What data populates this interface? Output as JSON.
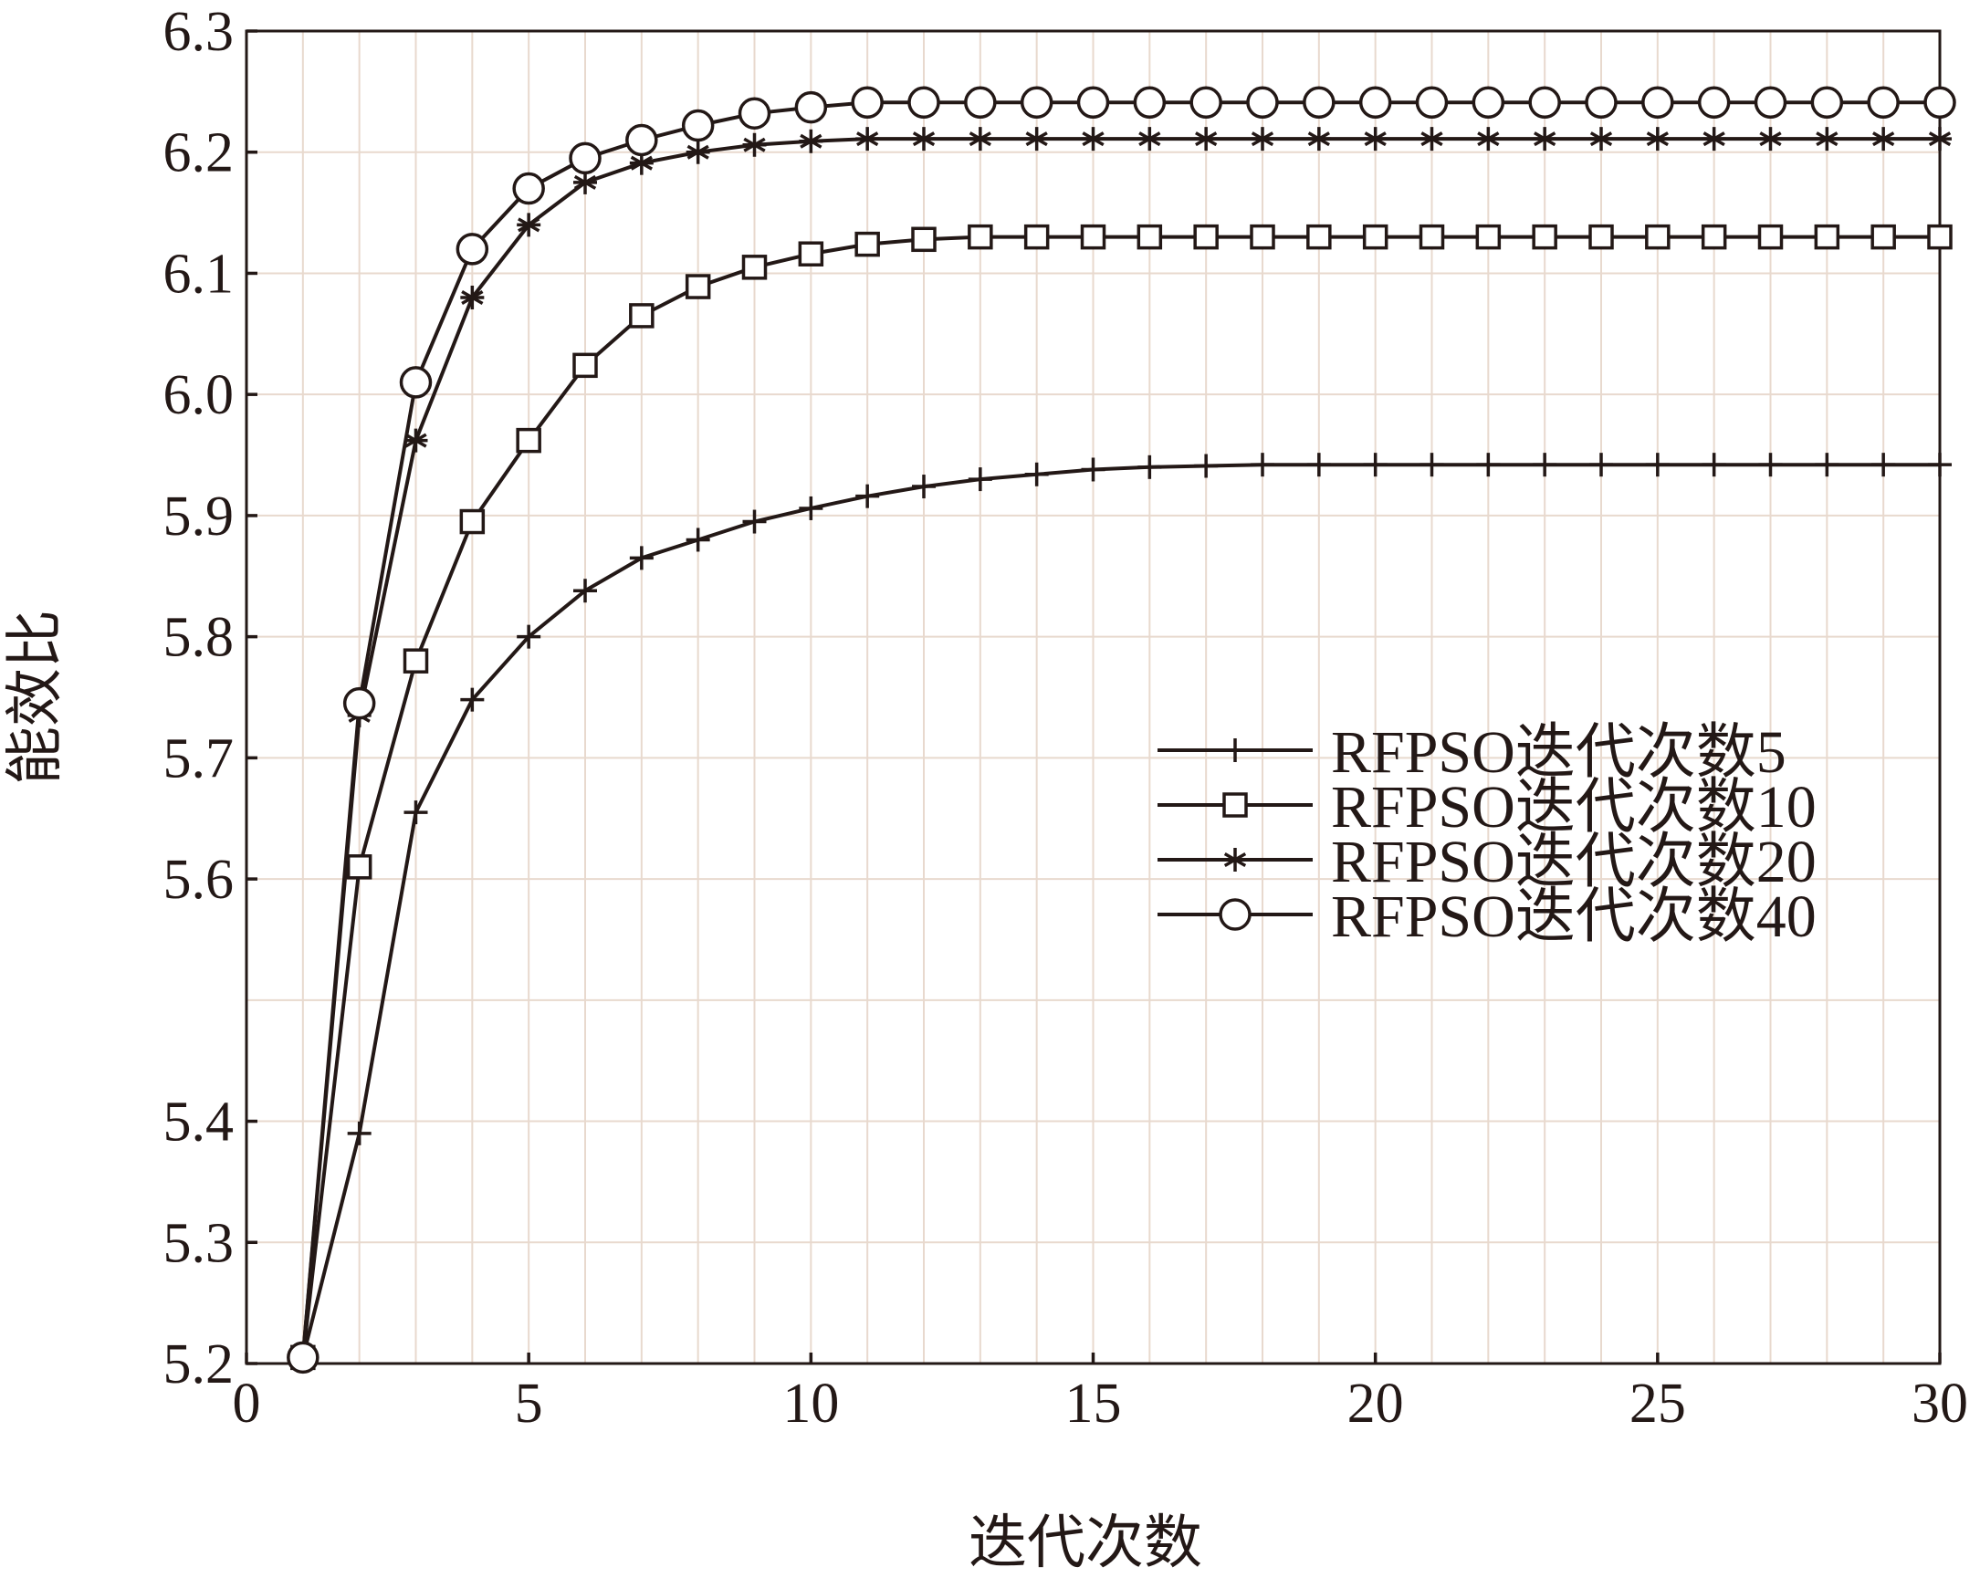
{
  "chart_data": {
    "type": "line",
    "xlabel": "迭代次数",
    "ylabel": "能效比",
    "xlim": [
      0,
      30
    ],
    "ylim": [
      5.2,
      6.3
    ],
    "x_ticks": [
      "0",
      "5",
      "10",
      "15",
      "20",
      "25",
      "30"
    ],
    "y_ticks": [
      "5.2",
      "5.3",
      "5.4",
      "5.6",
      "5.7",
      "5.8",
      "5.9",
      "6.0",
      "6.1",
      "6.2",
      "6.3"
    ],
    "grid": true,
    "legend_position": "center-right",
    "colors": {
      "line": "#231816",
      "grid": "#e8d9ce"
    },
    "series": [
      {
        "name": "RFPSO迭代次数5",
        "marker": "plus",
        "x": [
          1,
          2,
          3,
          4,
          5,
          6,
          7,
          8,
          9,
          10,
          11,
          12,
          13,
          14,
          15,
          16,
          17,
          18,
          19,
          20,
          21,
          22,
          23,
          24,
          25,
          26,
          27,
          28,
          29,
          30
        ],
        "y": [
          5.205,
          5.39,
          5.655,
          5.748,
          5.8,
          5.838,
          5.865,
          5.88,
          5.895,
          5.906,
          5.916,
          5.924,
          5.93,
          5.934,
          5.938,
          5.94,
          5.941,
          5.942,
          5.942,
          5.942,
          5.942,
          5.942,
          5.942,
          5.942,
          5.942,
          5.942,
          5.942,
          5.942,
          5.942,
          5.942
        ]
      },
      {
        "name": "RFPSO迭代次数10",
        "marker": "square",
        "x": [
          1,
          2,
          3,
          4,
          5,
          6,
          7,
          8,
          9,
          10,
          11,
          12,
          13,
          14,
          15,
          16,
          17,
          18,
          19,
          20,
          21,
          22,
          23,
          24,
          25,
          26,
          27,
          28,
          29,
          30
        ],
        "y": [
          5.205,
          5.61,
          5.78,
          5.895,
          5.962,
          6.024,
          6.065,
          6.089,
          6.105,
          6.116,
          6.124,
          6.128,
          6.13,
          6.13,
          6.13,
          6.13,
          6.13,
          6.13,
          6.13,
          6.13,
          6.13,
          6.13,
          6.13,
          6.13,
          6.13,
          6.13,
          6.13,
          6.13,
          6.13,
          6.13
        ]
      },
      {
        "name": "RFPSO迭代次数20",
        "marker": "asterisk",
        "x": [
          1,
          2,
          3,
          4,
          5,
          6,
          7,
          8,
          9,
          10,
          11,
          12,
          13,
          14,
          15,
          16,
          17,
          18,
          19,
          20,
          21,
          22,
          23,
          24,
          25,
          26,
          27,
          28,
          29,
          30
        ],
        "y": [
          5.205,
          5.735,
          5.962,
          6.08,
          6.14,
          6.175,
          6.191,
          6.2,
          6.206,
          6.209,
          6.211,
          6.211,
          6.211,
          6.211,
          6.211,
          6.211,
          6.211,
          6.211,
          6.211,
          6.211,
          6.211,
          6.211,
          6.211,
          6.211,
          6.211,
          6.211,
          6.211,
          6.211,
          6.211,
          6.211
        ]
      },
      {
        "name": "RFPSO迭代次数40",
        "marker": "circle",
        "x": [
          1,
          2,
          3,
          4,
          5,
          6,
          7,
          8,
          9,
          10,
          11,
          12,
          13,
          14,
          15,
          16,
          17,
          18,
          19,
          20,
          21,
          22,
          23,
          24,
          25,
          26,
          27,
          28,
          29,
          30
        ],
        "y": [
          5.205,
          5.745,
          6.01,
          6.12,
          6.17,
          6.195,
          6.21,
          6.222,
          6.232,
          6.237,
          6.241,
          6.241,
          6.241,
          6.241,
          6.241,
          6.241,
          6.241,
          6.241,
          6.241,
          6.241,
          6.241,
          6.241,
          6.241,
          6.241,
          6.241,
          6.241,
          6.241,
          6.241,
          6.241,
          6.241
        ]
      }
    ]
  }
}
